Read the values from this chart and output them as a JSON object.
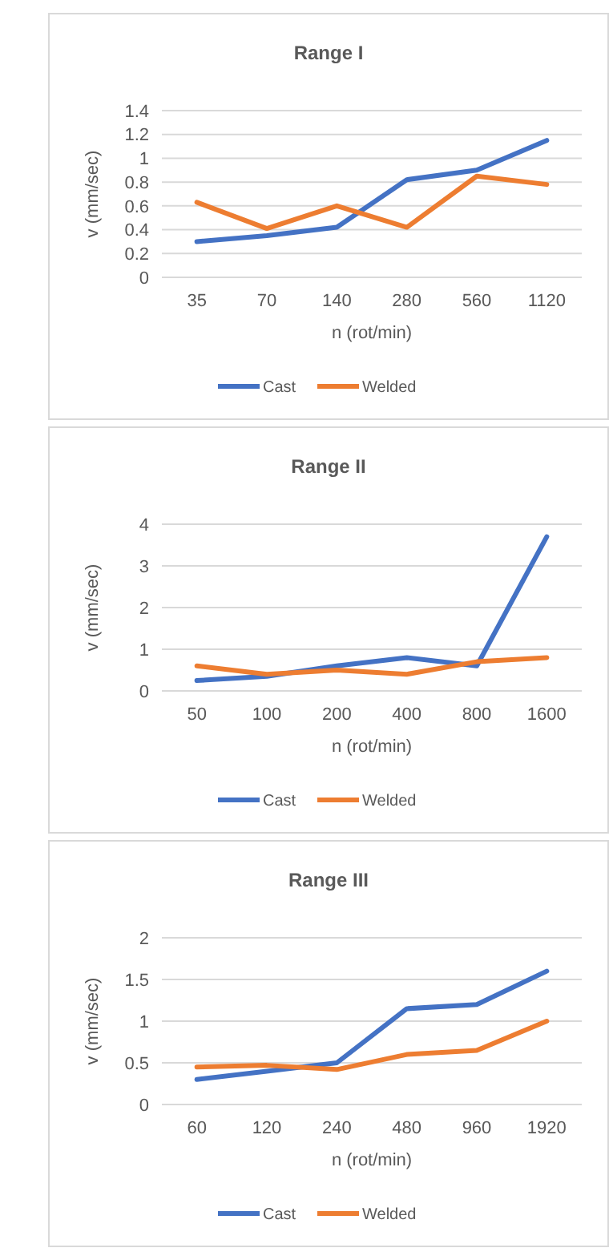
{
  "chart_data": [
    {
      "type": "line",
      "title": "Range I",
      "xlabel": "n (rot/min)",
      "ylabel": "v (mm/sec)",
      "categories": [
        "35",
        "70",
        "140",
        "280",
        "560",
        "1120"
      ],
      "ylim": [
        0,
        1.4
      ],
      "yticks": [
        0,
        0.2,
        0.4,
        0.6,
        0.8,
        1,
        1.2,
        1.4
      ],
      "grid": "y",
      "legend": "bottom",
      "marker": "none",
      "series": [
        {
          "name": "Cast",
          "color": "#4472c4",
          "values": [
            0.3,
            0.35,
            0.42,
            0.82,
            0.9,
            1.15
          ]
        },
        {
          "name": "Welded",
          "color": "#ed7d31",
          "values": [
            0.63,
            0.41,
            0.6,
            0.42,
            0.85,
            0.78
          ]
        }
      ]
    },
    {
      "type": "line",
      "title": "Range II",
      "xlabel": "n (rot/min)",
      "ylabel": "v (mm/sec)",
      "categories": [
        "50",
        "100",
        "200",
        "400",
        "800",
        "1600"
      ],
      "ylim": [
        0,
        4
      ],
      "yticks": [
        0,
        1,
        2,
        3,
        4
      ],
      "grid": "y",
      "legend": "bottom",
      "marker": "none",
      "series": [
        {
          "name": "Cast",
          "color": "#4472c4",
          "values": [
            0.25,
            0.35,
            0.6,
            0.8,
            0.6,
            3.7
          ]
        },
        {
          "name": "Welded",
          "color": "#ed7d31",
          "values": [
            0.6,
            0.4,
            0.5,
            0.4,
            0.7,
            0.8
          ]
        }
      ]
    },
    {
      "type": "line",
      "title": "Range III",
      "xlabel": "n (rot/min)",
      "ylabel": "v (mm/sec)",
      "categories": [
        "60",
        "120",
        "240",
        "480",
        "960",
        "1920"
      ],
      "ylim": [
        0,
        2
      ],
      "yticks": [
        0,
        0.5,
        1,
        1.5,
        2
      ],
      "grid": "y",
      "legend": "bottom",
      "marker": "none",
      "series": [
        {
          "name": "Cast",
          "color": "#4472c4",
          "values": [
            0.3,
            0.4,
            0.5,
            1.15,
            1.2,
            1.6
          ]
        },
        {
          "name": "Welded",
          "color": "#ed7d31",
          "values": [
            0.45,
            0.47,
            0.42,
            0.6,
            0.65,
            1.0
          ]
        }
      ]
    }
  ]
}
